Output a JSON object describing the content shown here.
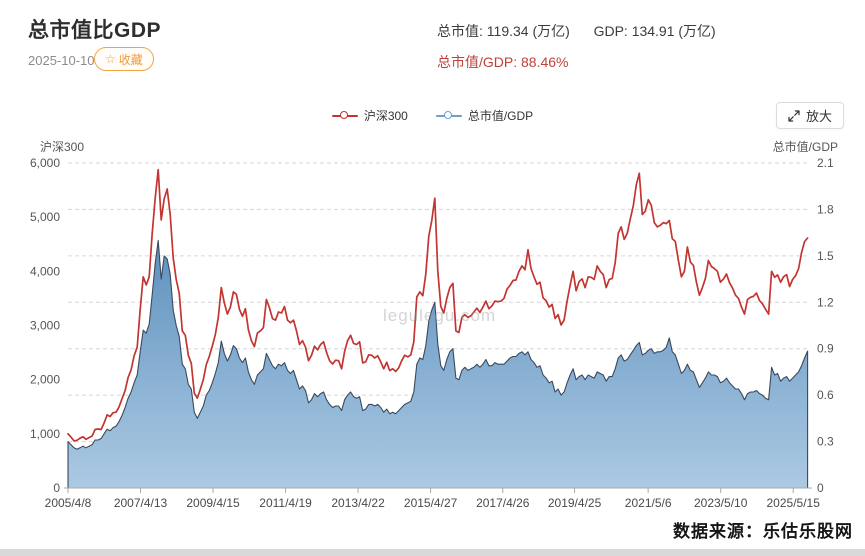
{
  "header": {
    "title": "总市值比GDP",
    "date": "2025-10-10",
    "favorite_button": {
      "icon": "☆",
      "label": "收藏",
      "accent_color": "#f09a38"
    },
    "stats": {
      "market_cap_label": "总市值:",
      "market_cap_value": "119.34 (万亿)",
      "gdp_label": "GDP:",
      "gdp_value": "134.91 (万亿)",
      "ratio_label": "总市值/GDP:",
      "ratio_value": "88.46%",
      "ratio_color": "#c0413b"
    }
  },
  "toolbar": {
    "zoom_button_label": "放大"
  },
  "watermark": "legulegu.com",
  "footer": {
    "source": "数据来源：乐估乐股网"
  },
  "chart_data": {
    "type": "line",
    "title": "总市值比GDP",
    "legend_position": "top-center",
    "grid": "dashed-horizontal",
    "legend": [
      {
        "name": "沪深300",
        "color": "#c23531"
      },
      {
        "name": "总市值/GDP",
        "color": "#6f9ec9"
      }
    ],
    "left_axis": {
      "title": "沪深300",
      "min": 0,
      "max": 6000,
      "interval": 1000,
      "tick_labels": [
        "0",
        "1,000",
        "2,000",
        "3,000",
        "4,000",
        "5,000",
        "6,000"
      ]
    },
    "right_axis": {
      "title": "总市值/GDP",
      "min": 0,
      "max": 2.1,
      "interval": 0.3,
      "tick_labels": [
        "0",
        "0.3",
        "0.6",
        "0.9",
        "1.2",
        "1.5",
        "1.8",
        "2.1"
      ]
    },
    "x_axis": {
      "tick_labels": [
        "2005/4/8",
        "2007/4/13",
        "2009/4/15",
        "2011/4/19",
        "2013/4/22",
        "2015/4/27",
        "2017/4/26",
        "2019/4/25",
        "2021/5/6",
        "2023/5/10",
        "2025/5/15"
      ],
      "tick_years": [
        2005.27,
        2007.28,
        2009.29,
        2011.3,
        2013.31,
        2015.32,
        2017.32,
        2019.31,
        2021.35,
        2023.36,
        2025.37
      ],
      "range": [
        2005.27,
        2025.78
      ]
    },
    "sample_start_year": 2005.27,
    "sample_interval_years": 0.0833333,
    "series": [
      {
        "name": "沪深300",
        "axis": "left",
        "style": "line",
        "color": "#c23531",
        "values": [
          1000,
          940,
          870,
          880,
          920,
          945,
          900,
          930,
          960,
          1080,
          1090,
          1080,
          1200,
          1350,
          1320,
          1390,
          1400,
          1500,
          1650,
          1800,
          2040,
          2180,
          2440,
          2600,
          3300,
          3900,
          3750,
          3900,
          4700,
          5350,
          5877,
          4950,
          5340,
          5520,
          5050,
          4250,
          3850,
          3600,
          2900,
          2820,
          2450,
          2300,
          1750,
          1660,
          1820,
          2000,
          2280,
          2430,
          2620,
          2830,
          3150,
          3700,
          3420,
          3210,
          3340,
          3620,
          3576,
          3300,
          3170,
          3310,
          2920,
          2720,
          2610,
          2860,
          2900,
          2960,
          3480,
          3330,
          3128,
          3100,
          3250,
          3230,
          3350,
          3100,
          3050,
          3100,
          2900,
          2650,
          2720,
          2600,
          2350,
          2450,
          2620,
          2550,
          2650,
          2700,
          2500,
          2350,
          2290,
          2360,
          2350,
          2200,
          2520,
          2720,
          2820,
          2670,
          2650,
          2700,
          2310,
          2330,
          2460,
          2450,
          2400,
          2440,
          2330,
          2200,
          2320,
          2170,
          2200,
          2150,
          2220,
          2350,
          2450,
          2420,
          2460,
          2700,
          3530,
          3620,
          3550,
          3950,
          4650,
          4940,
          5350,
          4000,
          3350,
          3230,
          3500,
          3700,
          3780,
          2900,
          2870,
          3150,
          3200,
          3150,
          3180,
          3250,
          3320,
          3240,
          3340,
          3450,
          3310,
          3360,
          3450,
          3440,
          3450,
          3500,
          3670,
          3740,
          3830,
          3840,
          4000,
          4100,
          4030,
          4400,
          4050,
          3900,
          3760,
          3800,
          3510,
          3460,
          3340,
          3390,
          3130,
          3200,
          3010,
          3100,
          3450,
          3740,
          4000,
          3640,
          3810,
          3860,
          3700,
          3900,
          3890,
          3850,
          4100,
          4000,
          3940,
          3700,
          3850,
          3870,
          4160,
          4700,
          4820,
          4590,
          4700,
          4960,
          5210,
          5600,
          5810,
          5050,
          5110,
          5320,
          5220,
          4900,
          4820,
          4850,
          4900,
          4880,
          4940,
          4600,
          4550,
          4200,
          3900,
          4000,
          4450,
          4170,
          4110,
          3800,
          3560,
          3700,
          3870,
          4200,
          4090,
          4050,
          4000,
          3800,
          3860,
          3950,
          3790,
          3690,
          3560,
          3500,
          3340,
          3210,
          3480,
          3520,
          3540,
          3600,
          3460,
          3400,
          3300,
          3210,
          4000,
          3890,
          3935,
          3800,
          3900,
          3940,
          3720,
          3850,
          3920,
          4050,
          4350,
          4550,
          4616
        ]
      },
      {
        "name": "总市值/GDP",
        "axis": "right",
        "style": "area",
        "color": "#6f9ec9",
        "stroke": "#39495e",
        "fill_top": "#5d90bd",
        "fill_mid": "#8ab1d3",
        "fill_bottom": "#abc9e2",
        "values": [
          0.3,
          0.28,
          0.26,
          0.25,
          0.26,
          0.27,
          0.26,
          0.27,
          0.28,
          0.31,
          0.31,
          0.32,
          0.35,
          0.38,
          0.37,
          0.39,
          0.4,
          0.43,
          0.47,
          0.52,
          0.58,
          0.62,
          0.68,
          0.73,
          0.88,
          1.02,
          1.0,
          1.06,
          1.25,
          1.45,
          1.6,
          1.35,
          1.5,
          1.48,
          1.38,
          1.15,
          1.05,
          0.98,
          0.8,
          0.77,
          0.67,
          0.64,
          0.49,
          0.45,
          0.49,
          0.53,
          0.6,
          0.63,
          0.68,
          0.74,
          0.81,
          0.95,
          0.87,
          0.82,
          0.86,
          0.92,
          0.9,
          0.84,
          0.81,
          0.84,
          0.75,
          0.7,
          0.67,
          0.73,
          0.75,
          0.77,
          0.87,
          0.83,
          0.79,
          0.77,
          0.8,
          0.79,
          0.81,
          0.76,
          0.74,
          0.76,
          0.7,
          0.64,
          0.66,
          0.63,
          0.55,
          0.57,
          0.61,
          0.59,
          0.61,
          0.62,
          0.57,
          0.54,
          0.52,
          0.53,
          0.53,
          0.5,
          0.57,
          0.6,
          0.62,
          0.59,
          0.58,
          0.59,
          0.5,
          0.51,
          0.54,
          0.54,
          0.53,
          0.54,
          0.52,
          0.49,
          0.51,
          0.48,
          0.49,
          0.48,
          0.5,
          0.52,
          0.54,
          0.55,
          0.56,
          0.62,
          0.8,
          0.84,
          0.83,
          0.92,
          1.08,
          1.15,
          1.2,
          0.93,
          0.79,
          0.76,
          0.83,
          0.88,
          0.9,
          0.71,
          0.7,
          0.76,
          0.78,
          0.76,
          0.77,
          0.78,
          0.8,
          0.78,
          0.8,
          0.83,
          0.79,
          0.79,
          0.81,
          0.8,
          0.8,
          0.8,
          0.82,
          0.84,
          0.85,
          0.85,
          0.87,
          0.88,
          0.86,
          0.88,
          0.83,
          0.81,
          0.78,
          0.79,
          0.73,
          0.71,
          0.68,
          0.69,
          0.62,
          0.64,
          0.6,
          0.62,
          0.68,
          0.73,
          0.77,
          0.7,
          0.72,
          0.73,
          0.7,
          0.73,
          0.72,
          0.71,
          0.75,
          0.74,
          0.73,
          0.69,
          0.72,
          0.72,
          0.77,
          0.84,
          0.86,
          0.82,
          0.83,
          0.86,
          0.89,
          0.92,
          0.94,
          0.86,
          0.87,
          0.89,
          0.9,
          0.87,
          0.88,
          0.88,
          0.89,
          0.91,
          0.97,
          0.88,
          0.86,
          0.8,
          0.74,
          0.76,
          0.8,
          0.76,
          0.75,
          0.7,
          0.65,
          0.68,
          0.71,
          0.75,
          0.73,
          0.73,
          0.72,
          0.68,
          0.69,
          0.71,
          0.68,
          0.66,
          0.64,
          0.64,
          0.61,
          0.57,
          0.61,
          0.62,
          0.62,
          0.63,
          0.61,
          0.6,
          0.58,
          0.57,
          0.78,
          0.73,
          0.74,
          0.69,
          0.71,
          0.72,
          0.69,
          0.71,
          0.73,
          0.75,
          0.79,
          0.84,
          0.8846
        ]
      }
    ]
  }
}
